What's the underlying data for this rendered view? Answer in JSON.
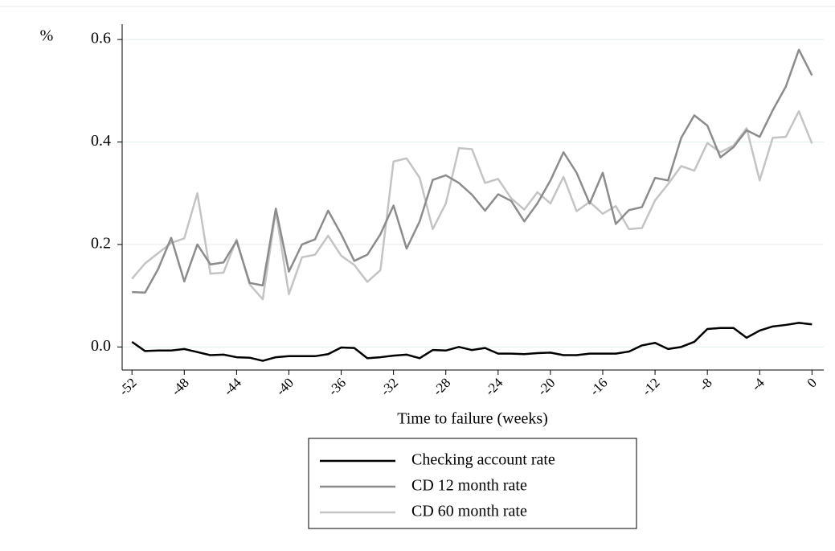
{
  "chart_data": {
    "type": "line",
    "y_label": "%",
    "x_label": "Time to failure (weeks)",
    "x": [
      -52,
      -51,
      -50,
      -49,
      -48,
      -47,
      -46,
      -45,
      -44,
      -43,
      -42,
      -41,
      -40,
      -39,
      -38,
      -37,
      -36,
      -35,
      -34,
      -33,
      -32,
      -31,
      -30,
      -29,
      -28,
      -27,
      -26,
      -25,
      -24,
      -23,
      -22,
      -21,
      -20,
      -19,
      -18,
      -17,
      -16,
      -15,
      -14,
      -13,
      -12,
      -11,
      -10,
      -9,
      -8,
      -7,
      -6,
      -5,
      -4,
      -3,
      -2,
      -1,
      0
    ],
    "series": [
      {
        "name": "Checking account rate",
        "color": "#000000",
        "values": [
          0.01,
          -0.008,
          -0.007,
          -0.007,
          -0.004,
          -0.01,
          -0.016,
          -0.015,
          -0.02,
          -0.021,
          -0.027,
          -0.02,
          -0.018,
          -0.018,
          -0.018,
          -0.014,
          -0.001,
          -0.002,
          -0.022,
          -0.02,
          -0.017,
          -0.015,
          -0.022,
          -0.006,
          -0.007,
          0.0,
          -0.006,
          -0.002,
          -0.013,
          -0.013,
          -0.014,
          -0.012,
          -0.011,
          -0.016,
          -0.016,
          -0.013,
          -0.013,
          -0.013,
          -0.009,
          0.003,
          0.008,
          -0.004,
          0.0,
          0.01,
          0.035,
          0.037,
          0.037,
          0.018,
          0.032,
          0.04,
          0.043,
          0.047,
          0.044
        ]
      },
      {
        "name": "CD 12 month rate",
        "color": "#8c8c8c",
        "values": [
          0.107,
          0.106,
          0.152,
          0.213,
          0.128,
          0.2,
          0.161,
          0.165,
          0.207,
          0.125,
          0.12,
          0.27,
          0.147,
          0.2,
          0.21,
          0.266,
          0.22,
          0.168,
          0.18,
          0.22,
          0.276,
          0.192,
          0.245,
          0.326,
          0.335,
          0.32,
          0.297,
          0.266,
          0.298,
          0.285,
          0.245,
          0.28,
          0.325,
          0.38,
          0.34,
          0.28,
          0.34,
          0.24,
          0.267,
          0.273,
          0.33,
          0.325,
          0.408,
          0.452,
          0.432,
          0.37,
          0.39,
          0.423,
          0.41,
          0.462,
          0.508,
          0.58,
          0.53
        ]
      },
      {
        "name": "CD 60 month rate",
        "color": "#c4c4c4",
        "values": [
          0.133,
          0.163,
          0.183,
          0.203,
          0.212,
          0.3,
          0.143,
          0.145,
          0.21,
          0.122,
          0.093,
          0.265,
          0.103,
          0.175,
          0.18,
          0.217,
          0.178,
          0.16,
          0.127,
          0.15,
          0.362,
          0.368,
          0.33,
          0.23,
          0.28,
          0.388,
          0.386,
          0.32,
          0.328,
          0.29,
          0.268,
          0.302,
          0.28,
          0.332,
          0.265,
          0.283,
          0.26,
          0.275,
          0.23,
          0.232,
          0.286,
          0.318,
          0.353,
          0.344,
          0.398,
          0.38,
          0.393,
          0.427,
          0.325,
          0.408,
          0.41,
          0.46,
          0.397
        ]
      }
    ],
    "xlim": [
      -52.75,
      0.9
    ],
    "xticks": [
      -52,
      -48,
      -44,
      -40,
      -36,
      -32,
      -28,
      -24,
      -20,
      -16,
      -12,
      -8,
      -4,
      0
    ],
    "ylim": [
      -0.045,
      0.63
    ],
    "yticks": [
      {
        "value": 0,
        "label": "0.0"
      },
      0.2,
      0.4,
      0.6
    ],
    "grid": true,
    "legend": "bottom"
  }
}
